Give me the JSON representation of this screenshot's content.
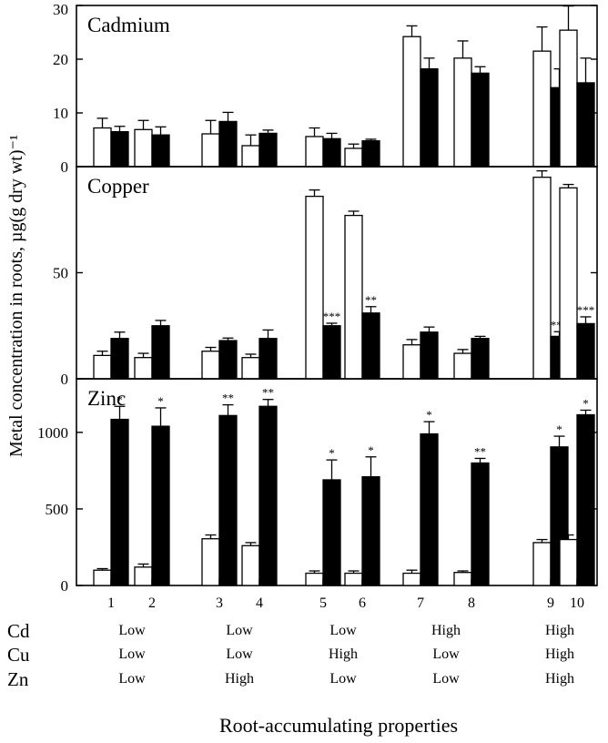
{
  "chart_data": {
    "type": "bar",
    "ylabel": "Metal concentration in roots, µg(g dry wt)⁻¹",
    "xlabel": "Root-accumulating properties",
    "categories": [
      "1",
      "2",
      "3",
      "4",
      "5",
      "6",
      "7",
      "8",
      "9",
      "10"
    ],
    "panels": [
      {
        "title": "Cadmium",
        "ylim": [
          0,
          30
        ],
        "yticks": [
          "0",
          "10",
          "20",
          "30"
        ],
        "ytick_values": [
          0,
          10,
          20,
          30
        ],
        "series": [
          {
            "fill": "open",
            "values": [
              7.2,
              6.9,
              6.1,
              3.9,
              5.6,
              3.4,
              24.2,
              20.2,
              21.5,
              25.4
            ],
            "errors": [
              1.8,
              1.7,
              2.5,
              2.0,
              1.6,
              0.8,
              2.0,
              3.2,
              4.5,
              4.5
            ]
          },
          {
            "fill": "filled",
            "values": [
              6.5,
              5.9,
              8.4,
              6.2,
              5.2,
              4.8,
              18.2,
              17.4,
              14.7,
              15.6
            ],
            "errors": [
              1.0,
              1.5,
              1.7,
              0.6,
              1.0,
              0.3,
              2.0,
              1.2,
              3.5,
              4.6
            ]
          }
        ],
        "significance": [
          "",
          "",
          "",
          "",
          "",
          "",
          "",
          "",
          "",
          ""
        ]
      },
      {
        "title": "Copper",
        "ylim": [
          0,
          100
        ],
        "yticks": [
          "0",
          "50"
        ],
        "ytick_values": [
          0,
          50
        ],
        "series": [
          {
            "fill": "open",
            "values": [
              11,
              10,
              13,
              10,
              86,
              77,
              16,
              12,
              95,
              90
            ],
            "errors": [
              2.0,
              2.0,
              1.8,
              1.6,
              3.0,
              2.0,
              2.5,
              1.8,
              3.0,
              1.6
            ]
          },
          {
            "fill": "filled",
            "values": [
              19,
              25,
              18,
              19,
              25,
              31,
              22,
              19,
              20,
              26
            ],
            "errors": [
              3.0,
              2.5,
              1.2,
              4.0,
              1.2,
              3.0,
              2.4,
              1.0,
              2.2,
              3.2
            ]
          }
        ],
        "significance": [
          "",
          "",
          "",
          "",
          "***",
          "**",
          "",
          "",
          "***",
          "***"
        ]
      },
      {
        "title": "Zinc",
        "ylim": [
          0,
          1350
        ],
        "yticks": [
          "0",
          "500",
          "1000"
        ],
        "ytick_values": [
          0,
          500,
          1000
        ],
        "series": [
          {
            "fill": "open",
            "values": [
              100,
              120,
              305,
              260,
              80,
              80,
              80,
              85,
              280,
              300
            ],
            "errors": [
              10,
              20,
              25,
              20,
              15,
              15,
              20,
              10,
              20,
              30
            ]
          },
          {
            "fill": "filled",
            "values": [
              1085,
              1040,
              1110,
              1170,
              690,
              710,
              990,
              800,
              905,
              1115
            ],
            "errors": [
              85,
              120,
              70,
              45,
              130,
              130,
              80,
              30,
              70,
              30
            ]
          }
        ],
        "significance": [
          "*",
          "*",
          "**",
          "**",
          "*",
          "*",
          "*",
          "**",
          "*",
          "*"
        ]
      }
    ],
    "property_table": {
      "rows": [
        {
          "metal": "Cd",
          "levels": [
            "Low",
            "Low",
            "Low",
            "High",
            "High"
          ]
        },
        {
          "metal": "Cu",
          "levels": [
            "Low",
            "Low",
            "High",
            "Low",
            "High"
          ]
        },
        {
          "metal": "Zn",
          "levels": [
            "Low",
            "High",
            "Low",
            "Low",
            "High"
          ]
        }
      ]
    },
    "legend": "none",
    "grid": false
  }
}
